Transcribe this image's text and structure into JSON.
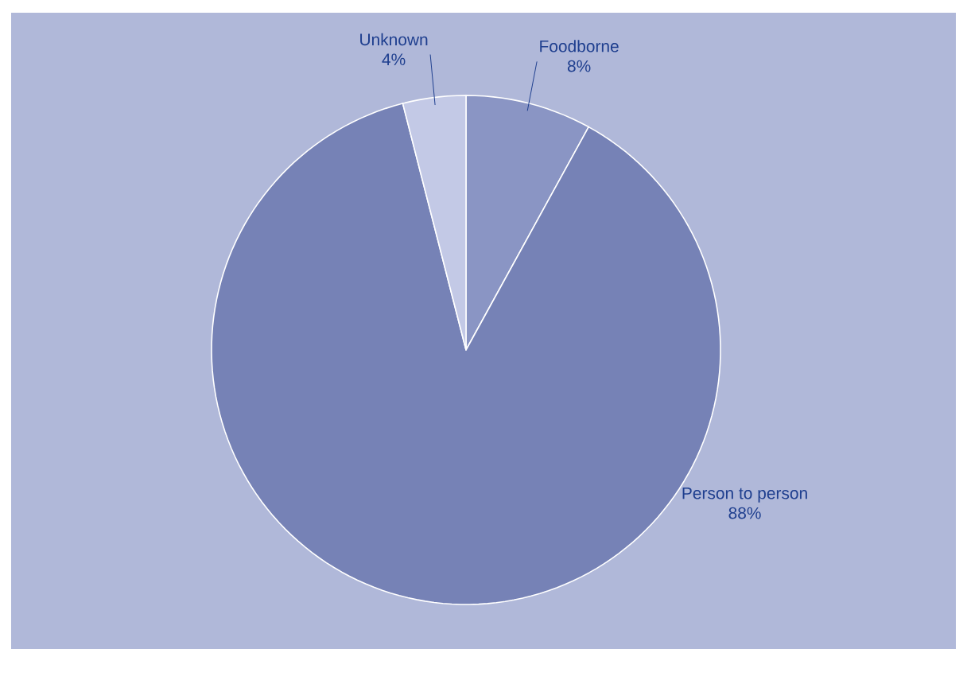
{
  "chart_data": {
    "type": "pie",
    "categories": [
      "Foodborne",
      "Person to person",
      "Unknown"
    ],
    "values": [
      8,
      88,
      4
    ],
    "value_labels": [
      "8%",
      "88%",
      "4%"
    ],
    "colors": [
      "#8a95c4",
      "#7682b6",
      "#c3c9e6"
    ]
  }
}
